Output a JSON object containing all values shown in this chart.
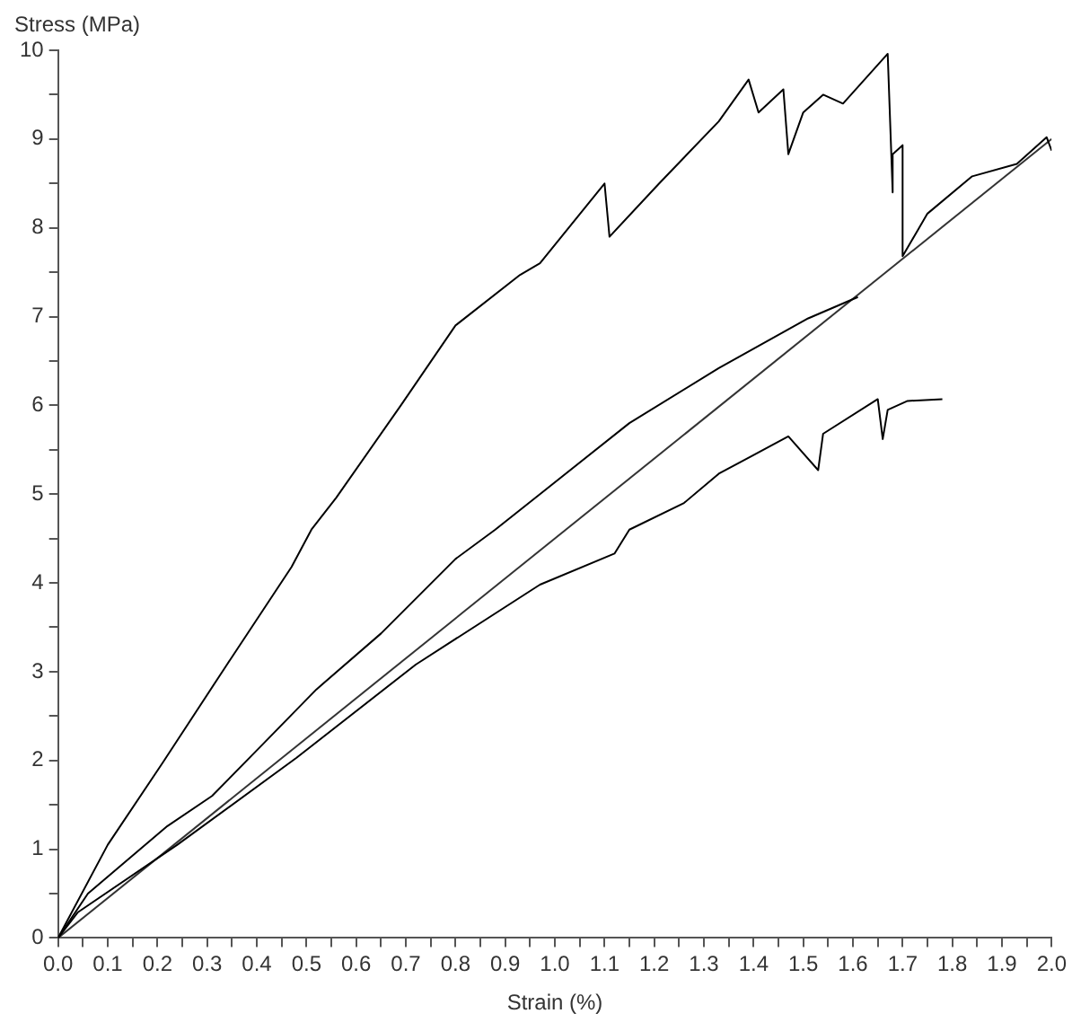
{
  "chart_data": {
    "type": "line",
    "xlabel": "Strain (%)",
    "ylabel": "Stress (MPa)",
    "grid": false,
    "legend": false,
    "marker": "none",
    "line_style": "solid",
    "xlim": [
      0,
      2
    ],
    "ylim": [
      0,
      10
    ],
    "xticks": [
      {
        "value": 0,
        "label": "0.0"
      },
      {
        "value": 0.05,
        "label": null
      },
      0.1,
      {
        "value": 0.15,
        "label": null
      },
      0.2,
      {
        "value": 0.25,
        "label": null
      },
      0.3,
      {
        "value": 0.35,
        "label": null
      },
      0.4,
      {
        "value": 0.45,
        "label": null
      },
      0.5,
      {
        "value": 0.55,
        "label": null
      },
      0.6,
      {
        "value": 0.65,
        "label": null
      },
      0.7,
      {
        "value": 0.75,
        "label": null
      },
      0.8,
      {
        "value": 0.85,
        "label": null
      },
      0.9,
      {
        "value": 0.95,
        "label": null
      },
      {
        "value": 1,
        "label": "1.0"
      },
      {
        "value": 1.05,
        "label": null
      },
      1.1,
      {
        "value": 1.15,
        "label": null
      },
      1.2,
      {
        "value": 1.25,
        "label": null
      },
      1.3,
      {
        "value": 1.35,
        "label": null
      },
      1.4,
      {
        "value": 1.45,
        "label": null
      },
      1.5,
      {
        "value": 1.55,
        "label": null
      },
      1.6,
      {
        "value": 1.65,
        "label": null
      },
      1.7,
      {
        "value": 1.75,
        "label": null
      },
      1.8,
      {
        "value": 1.85,
        "label": null
      },
      1.9,
      {
        "value": 1.95,
        "label": null
      },
      {
        "value": 2,
        "label": "2.0"
      }
    ],
    "yticks": [
      0,
      {
        "value": 0.5,
        "label": null
      },
      1,
      {
        "value": 1.5,
        "label": null
      },
      2,
      {
        "value": 2.5,
        "label": null
      },
      3,
      {
        "value": 3.5,
        "label": null
      },
      4,
      {
        "value": 4.5,
        "label": null
      },
      5,
      {
        "value": 5.5,
        "label": null
      },
      6,
      {
        "value": 6.5,
        "label": null
      },
      7,
      {
        "value": 7.5,
        "label": null
      },
      8,
      {
        "value": 8.5,
        "label": null
      },
      9,
      {
        "value": 9.5,
        "label": null
      },
      10
    ],
    "series": [
      {
        "color": "#000000",
        "x": [
          0,
          0.1,
          0.21,
          0.34,
          0.47,
          0.51,
          0.56,
          0.69,
          0.8,
          0.93,
          0.97,
          1.1,
          1.11,
          1.21,
          1.33,
          1.39,
          1.41,
          1.46,
          1.47,
          1.5,
          1.54,
          1.58,
          1.67,
          1.68,
          1.68,
          1.7,
          1.7,
          1.75,
          1.84,
          1.93,
          1.99,
          2.0
        ],
        "values": [
          0,
          1.05,
          1.97,
          3.08,
          4.18,
          4.6,
          4.96,
          6.0,
          6.9,
          7.47,
          7.6,
          8.5,
          7.9,
          8.5,
          9.2,
          9.67,
          9.3,
          9.56,
          8.83,
          9.3,
          9.5,
          9.4,
          9.96,
          8.4,
          8.83,
          8.93,
          7.68,
          8.16,
          8.58,
          8.72,
          9.02,
          8.87
        ]
      },
      {
        "color": "#000000",
        "x": [
          0,
          0.06,
          0.22,
          0.31,
          0.41,
          0.52,
          0.65,
          0.8,
          0.88,
          0.97,
          1.15,
          1.33,
          1.51,
          1.61
        ],
        "values": [
          0,
          0.5,
          1.26,
          1.6,
          2.17,
          2.8,
          3.43,
          4.27,
          4.6,
          5.0,
          5.8,
          6.42,
          6.98,
          7.22
        ]
      },
      {
        "color": "#000000",
        "x": [
          0,
          0.04,
          0.24,
          0.48,
          0.72,
          0.97,
          1.12,
          1.15,
          1.26,
          1.33,
          1.47,
          1.53,
          1.54,
          1.65,
          1.66,
          1.67,
          1.71,
          1.78
        ],
        "values": [
          0,
          0.29,
          1.05,
          2.03,
          3.08,
          3.98,
          4.33,
          4.6,
          4.9,
          5.23,
          5.65,
          5.27,
          5.68,
          6.07,
          5.62,
          5.95,
          6.05,
          6.07
        ]
      },
      {
        "color": "#333333",
        "x": [
          0,
          2
        ],
        "values": [
          0,
          9
        ]
      }
    ]
  }
}
